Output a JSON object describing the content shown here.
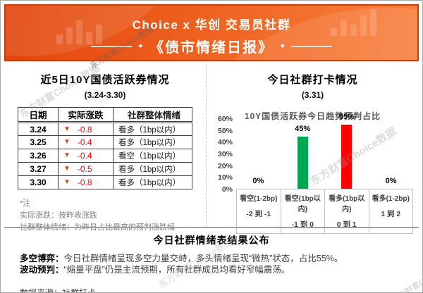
{
  "header": {
    "line1": "Choice x 华创 交易员社群",
    "line2": "《债市情绪日报》",
    "star": "✦"
  },
  "left": {
    "title": "近5日10Y国债活跃券情况",
    "subtitle": "(3.24-3.30)",
    "table": {
      "headers": [
        "日期",
        "实际涨跌",
        "社群整体情绪"
      ],
      "down_triangle": "▼",
      "rows": [
        {
          "date": "3.24",
          "change": "-0.8",
          "sentiment": "看多（1bp以内）"
        },
        {
          "date": "3.25",
          "change": "-0.4",
          "sentiment": "看多（1bp以内）"
        },
        {
          "date": "3.26",
          "change": "-0.4",
          "sentiment": "看空（1bp以内）"
        },
        {
          "date": "3.27",
          "change": "-0.5",
          "sentiment": "看多（1bp以内）"
        },
        {
          "date": "3.30",
          "change": "-0.8",
          "sentiment": "看多（1bp以内）"
        }
      ]
    },
    "notes": [
      "*注",
      "实际涨跌：按昨收涨跌",
      "社群整体情绪：为昨日占比最高的预判涨跌幅"
    ]
  },
  "right": {
    "title": "今日社群打卡情况",
    "subtitle": "(3.31)"
  },
  "chart_data": {
    "type": "bar",
    "title": "10Y国债活跃券今日趋势预判占比",
    "categories": [
      "看空(1-2bp)",
      "看空(1bp以内)",
      "看多(1bp以内)",
      "看多(1-2bp)"
    ],
    "ranges": [
      "-2 到 -1",
      "-1 到 0",
      "0 到 1",
      "1 到 2"
    ],
    "values": [
      0,
      45,
      55,
      0
    ],
    "labels": [
      "0%",
      "45%",
      "55%",
      "0%"
    ],
    "colors": [
      "#00a651",
      "#00a651",
      "#fe0000",
      "#fe0000"
    ],
    "ylim": [
      0,
      60
    ],
    "yticks": [
      "60%",
      "50%",
      "40%",
      "30%",
      "20%",
      "10%",
      "0%"
    ],
    "grid": false,
    "legend": null
  },
  "summary": {
    "title": "今日社群情绪表结果公布",
    "items": [
      {
        "label": "多空博弈：",
        "text": "今日社群情绪呈现多空力量交峙，多头情绪呈现“微热”状态，占比55%。"
      },
      {
        "label": "波动预判：",
        "text": "“缩量平盘”仍是主流预期，所有社群成员均看好窄幅震荡。"
      }
    ],
    "source": "数据来源：社群打卡"
  },
  "watermark": "东方财富Choice数据"
}
